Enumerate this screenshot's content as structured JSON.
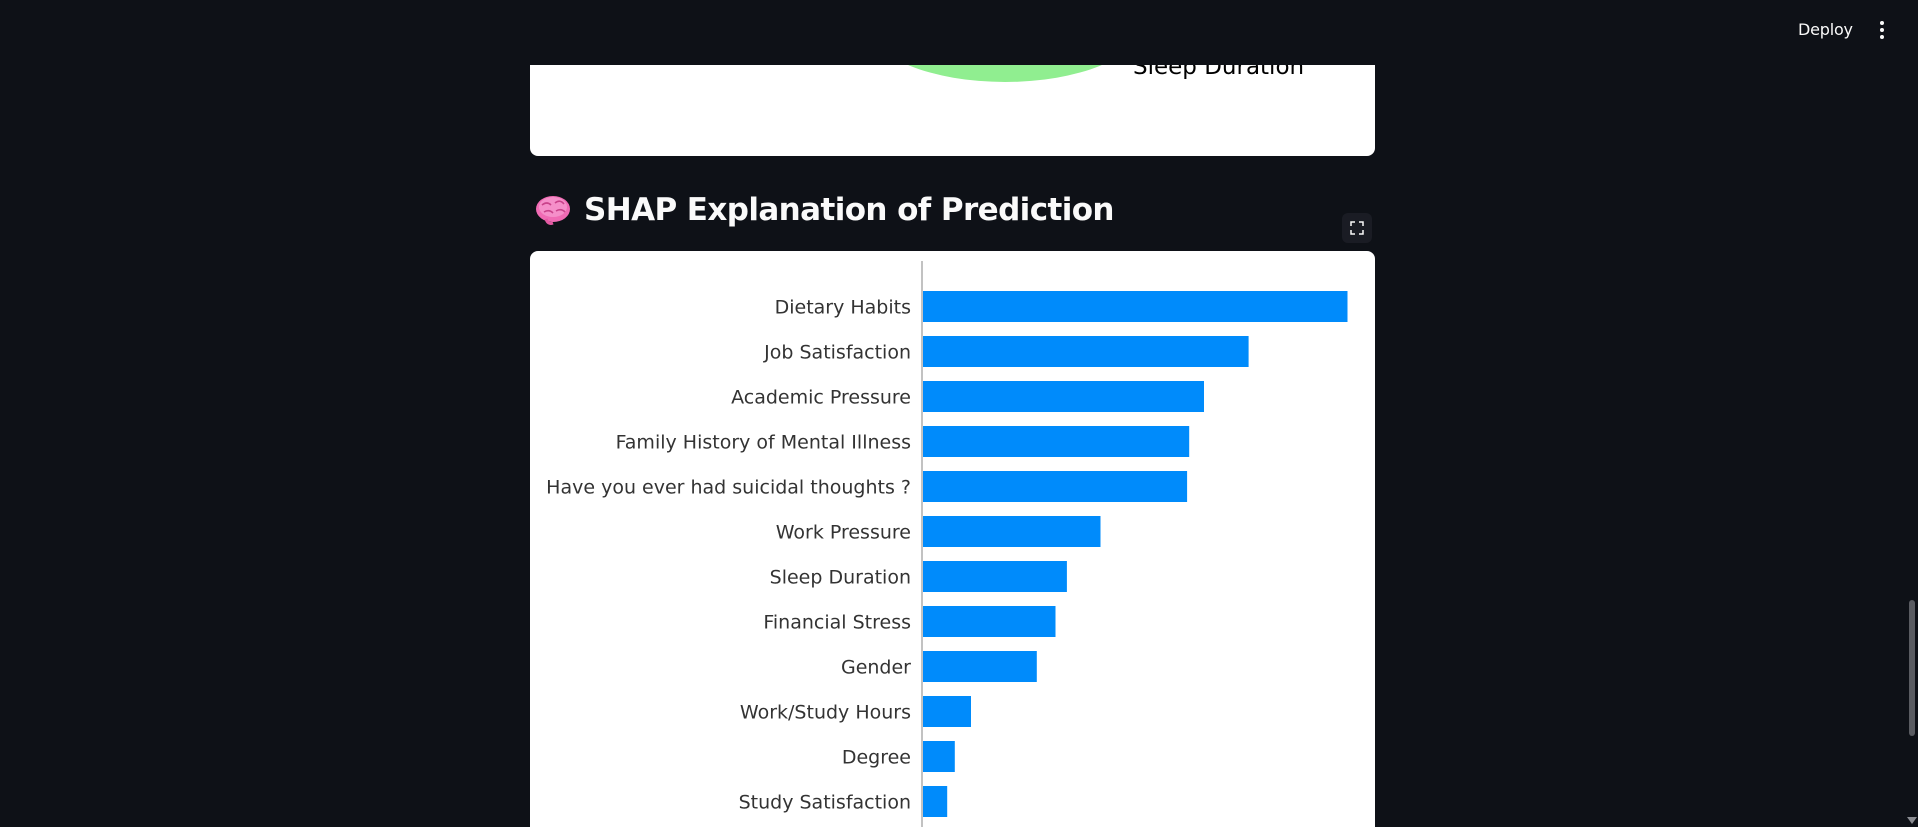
{
  "header": {
    "deploy_label": "Deploy",
    "menu_icon": "kebab-menu-icon"
  },
  "top_chart": {
    "visible_legend_label": "Sleep Duration",
    "slice_color": "#90ee90"
  },
  "section": {
    "emoji": "🧠",
    "title": "SHAP Explanation of Prediction"
  },
  "chart_data": {
    "type": "bar",
    "orientation": "horizontal",
    "bar_color": "#008bfb",
    "categories": [
      "Dietary Habits",
      "Job Satisfaction",
      "Academic Pressure",
      "Family History of Mental Illness",
      "Have you ever had suicidal thoughts ?",
      "Work Pressure",
      "Sleep Duration",
      "Financial Stress",
      "Gender",
      "Work/Study Hours",
      "Degree",
      "Study Satisfaction"
    ],
    "values": [
      1.0,
      0.767,
      0.662,
      0.627,
      0.622,
      0.418,
      0.339,
      0.312,
      0.268,
      0.113,
      0.075,
      0.057
    ],
    "xlim": [
      0,
      1.06
    ]
  }
}
